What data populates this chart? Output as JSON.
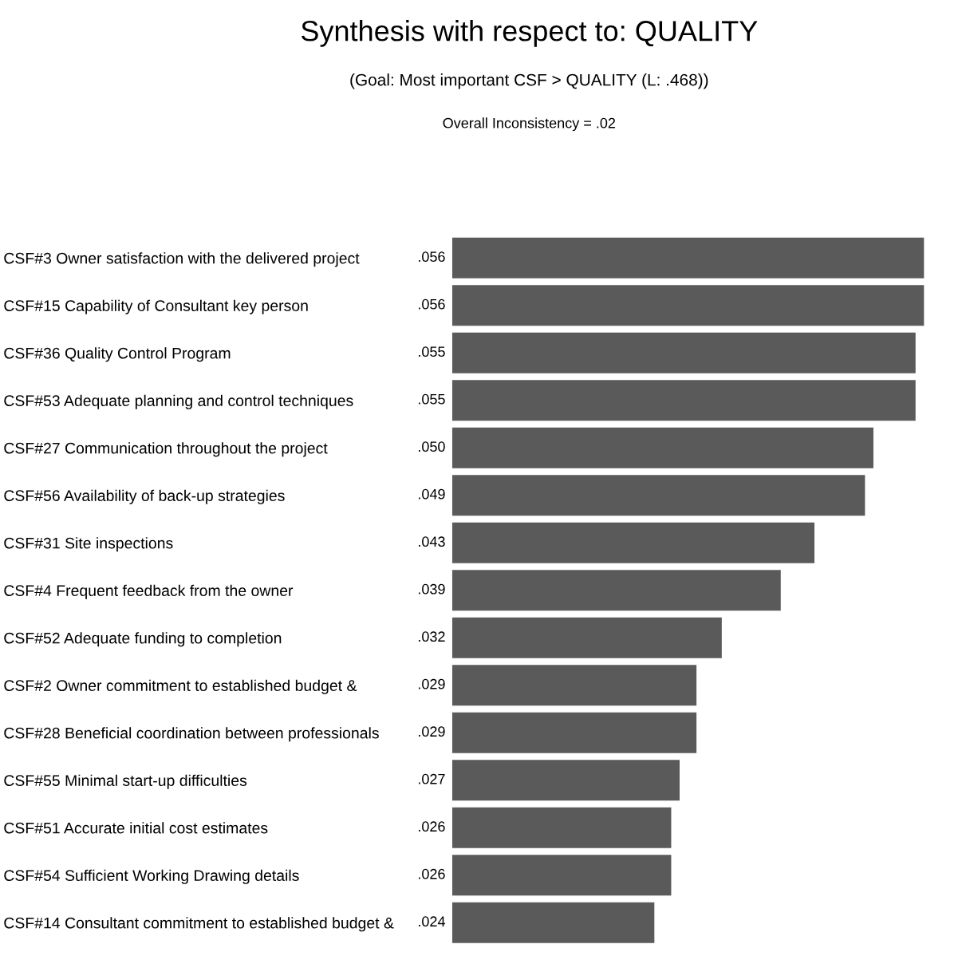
{
  "chart_data": {
    "type": "bar",
    "orientation": "horizontal",
    "title": "Synthesis with respect to: QUALITY",
    "subtitle": "(Goal: Most important CSF > QUALITY (L: .468))",
    "annotations": [
      "Overall Inconsistency = .02"
    ],
    "categories": [
      "CSF#3 Owner satisfaction with the delivered project",
      "CSF#15 Capability of Consultant key person",
      "CSF#36 Quality Control Program",
      "CSF#53 Adequate planning and control techniques",
      "CSF#27 Communication throughout the project",
      "CSF#56 Availability of back-up strategies",
      "CSF#31 Site inspections",
      "CSF#4 Frequent feedback from the owner",
      "CSF#52 Adequate funding to completion",
      "CSF#2 Owner commitment to established budget &",
      "CSF#28 Beneficial coordination between professionals",
      "CSF#55 Minimal start-up difficulties",
      "CSF#51 Accurate initial cost estimates",
      "CSF#54 Sufficient Working Drawing details",
      "CSF#14 Consultant commitment to established budget &"
    ],
    "values": [
      0.056,
      0.056,
      0.055,
      0.055,
      0.05,
      0.049,
      0.043,
      0.039,
      0.032,
      0.029,
      0.029,
      0.027,
      0.026,
      0.026,
      0.024
    ],
    "value_labels": [
      ".056",
      ".056",
      ".055",
      ".055",
      ".050",
      ".049",
      ".043",
      ".039",
      ".032",
      ".029",
      ".029",
      ".027",
      ".026",
      ".026",
      ".024"
    ],
    "color": "#5a5a5a"
  }
}
